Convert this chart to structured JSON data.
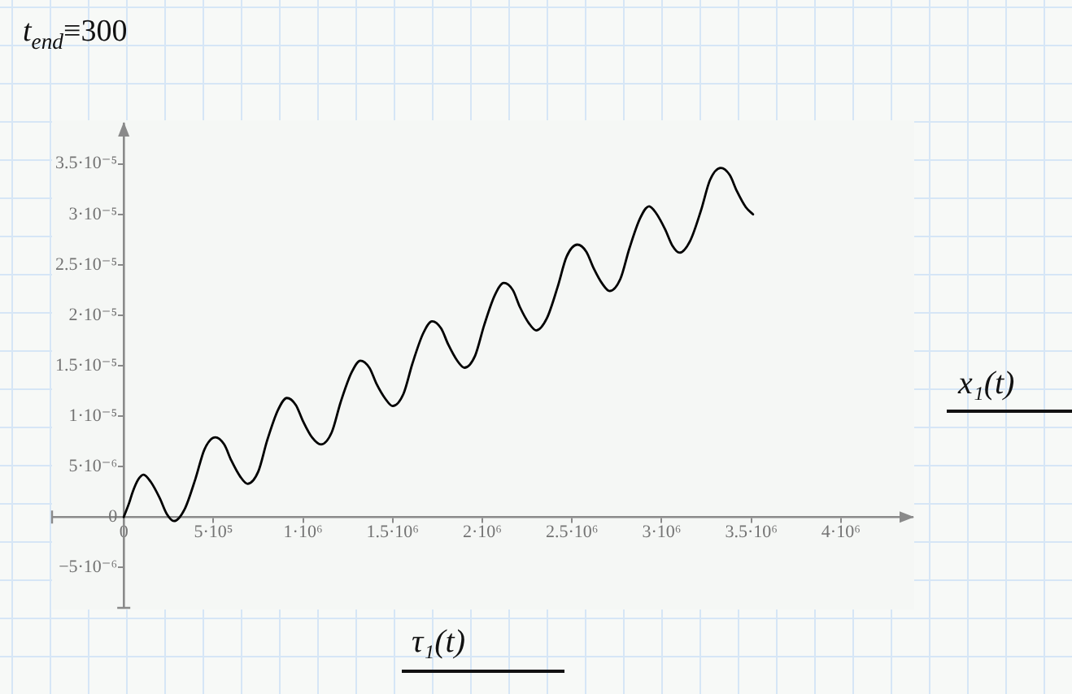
{
  "chart_data": {
    "type": "line",
    "annotations": [
      "t$_{end}$≡300"
    ],
    "xlabel": "τ₁(t)",
    "ylabel": "x₁(t)",
    "x": [
      0,
      30000,
      50000,
      80000,
      110000,
      150000,
      200000,
      240000,
      280000,
      340000,
      400000,
      450000,
      510000,
      560000,
      600000,
      650000,
      690000,
      750000,
      800000,
      860000,
      910000,
      960000,
      1000000,
      1050000,
      1100000,
      1160000,
      1210000,
      1270000,
      1320000,
      1370000,
      1410000,
      1460000,
      1500000,
      1560000,
      1610000,
      1670000,
      1720000,
      1770000,
      1810000,
      1860000,
      1900000,
      1960000,
      2010000,
      2070000,
      2120000,
      2170000,
      2210000,
      2260000,
      2300000,
      2360000,
      2420000,
      2470000,
      2530000,
      2580000,
      2620000,
      2670000,
      2710000,
      2770000,
      2820000,
      2880000,
      2930000,
      2970000,
      3020000,
      3060000,
      3100000,
      3160000,
      3220000,
      3270000,
      3330000,
      3380000,
      3420000,
      3470000,
      3510000
    ],
    "values": [
      0,
      1.4e-06,
      2.5e-06,
      3.7e-06,
      4.2e-06,
      3.5e-06,
      1.9e-06,
      3e-07,
      -4e-07,
      8e-07,
      3.8e-06,
      6.7e-06,
      7.9e-06,
      7.2e-06,
      5.6e-06,
      4e-06,
      3.3e-06,
      4.5e-06,
      7.6e-06,
      1.06e-05,
      1.18e-05,
      1.11e-05,
      9.5e-06,
      7.9e-06,
      7.2e-06,
      8.4e-06,
      1.14e-05,
      1.43e-05,
      1.55e-05,
      1.48e-05,
      1.32e-05,
      1.17e-05,
      1.1e-05,
      1.22e-05,
      1.52e-05,
      1.82e-05,
      1.94e-05,
      1.87e-05,
      1.71e-05,
      1.55e-05,
      1.48e-05,
      1.6e-05,
      1.9e-05,
      2.2e-05,
      2.32e-05,
      2.25e-05,
      2.08e-05,
      1.92e-05,
      1.85e-05,
      1.97e-05,
      2.28e-05,
      2.58e-05,
      2.7e-05,
      2.63e-05,
      2.47e-05,
      2.31e-05,
      2.24e-05,
      2.36e-05,
      2.66e-05,
      2.96e-05,
      3.08e-05,
      3.01e-05,
      2.85e-05,
      2.69e-05,
      2.62e-05,
      2.74e-05,
      3.04e-05,
      3.34e-05,
      3.46e-05,
      3.39e-05,
      3.23e-05,
      3.07e-05,
      3e-05
    ],
    "color": "#000000",
    "marker": "none",
    "xlim": [
      -400000,
      4400000
    ],
    "ylim": [
      -9e-06,
      3.9e-05
    ],
    "xticks": [
      0,
      {
        "value": 500000,
        "label": "5·10⁵"
      },
      {
        "value": 1000000,
        "label": "1·10⁶"
      },
      {
        "value": 1500000,
        "label": "1.5·10⁶"
      },
      {
        "value": 2000000,
        "label": "2·10⁶"
      },
      {
        "value": 2500000,
        "label": "2.5·10⁶"
      },
      {
        "value": 3000000,
        "label": "3·10⁶"
      },
      {
        "value": 3500000,
        "label": "3.5·10⁶"
      },
      {
        "value": 4000000,
        "label": "4·10⁶"
      }
    ],
    "yticks": [
      {
        "value": -5e-06,
        "label": "−5·10⁻⁶"
      },
      0,
      {
        "value": 5e-06,
        "label": "5·10⁻⁶"
      },
      {
        "value": 1e-05,
        "label": "1·10⁻⁵"
      },
      {
        "value": 1.5e-05,
        "label": "1.5·10⁻⁵"
      },
      {
        "value": 2e-05,
        "label": "2·10⁻⁵"
      },
      {
        "value": 2.5e-05,
        "label": "2.5·10⁻⁵"
      },
      {
        "value": 3e-05,
        "label": "3·10⁻⁵"
      },
      {
        "value": 3.5e-05,
        "label": "3.5·10⁻⁵"
      }
    ]
  }
}
